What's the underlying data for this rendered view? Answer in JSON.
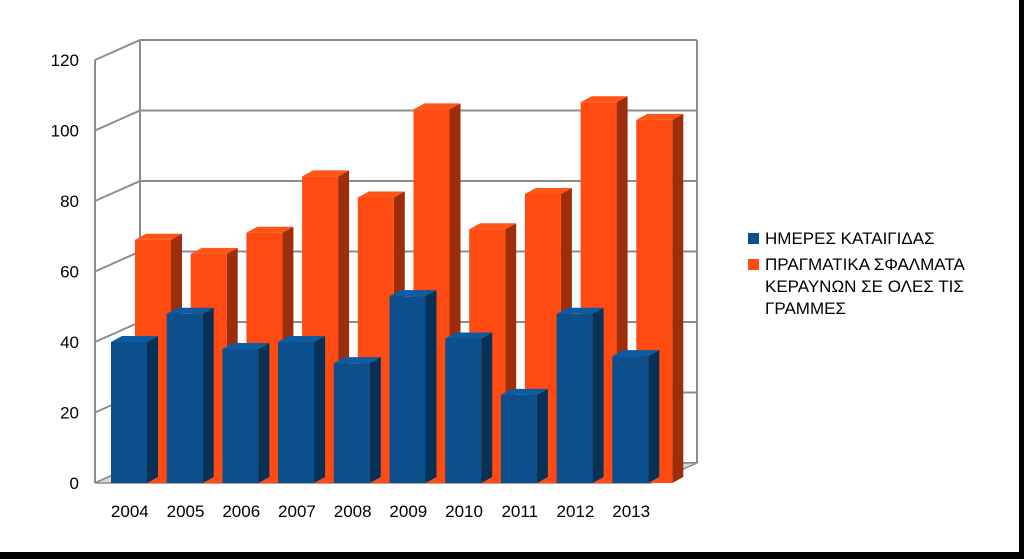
{
  "chart_data": {
    "type": "bar",
    "categories": [
      "2004",
      "2005",
      "2006",
      "2007",
      "2008",
      "2009",
      "2010",
      "2011",
      "2012",
      "2013"
    ],
    "series": [
      {
        "name": "ΗΜΕΡΕΣ ΚΑΤΑΙΓΙΔΑΣ",
        "color": "#0B4F8C",
        "values": [
          40,
          48,
          38,
          40,
          34,
          53,
          41,
          25,
          48,
          36
        ]
      },
      {
        "name": "ΠΡΑΓΜΑΤΙΚΑ ΣΦΑΛΜΑΤΑ ΚΕΡΑΥΝΩΝ ΣΕ ΟΛΕΣ ΤΙΣ ΓΡΑΜΜΕΣ",
        "color": "#FF4A12",
        "values": [
          69,
          65,
          71,
          87,
          81,
          106,
          72,
          82,
          108,
          103
        ]
      }
    ],
    "yticks": [
      "0",
      "20",
      "40",
      "60",
      "80",
      "100",
      "120"
    ],
    "ylim": [
      0,
      120
    ],
    "title": "",
    "xlabel": "",
    "ylabel": "",
    "grid": true,
    "legend_position": "right",
    "style": "3d-clustered-bar"
  },
  "legend": {
    "items": [
      {
        "label": "ΗΜΕΡΕΣ ΚΑΤΑΙΓΙΔΑΣ",
        "color": "#0B4F8C"
      },
      {
        "label": "ΠΡΑΓΜΑΤΙΚΑ ΣΦΑΛΜΑΤΑ\nΚΕΡΑΥΝΩΝ ΣΕ ΟΛΕΣ ΤΙΣ\nΓΡΑΜΜΕΣ",
        "color": "#FF4A12"
      }
    ]
  }
}
